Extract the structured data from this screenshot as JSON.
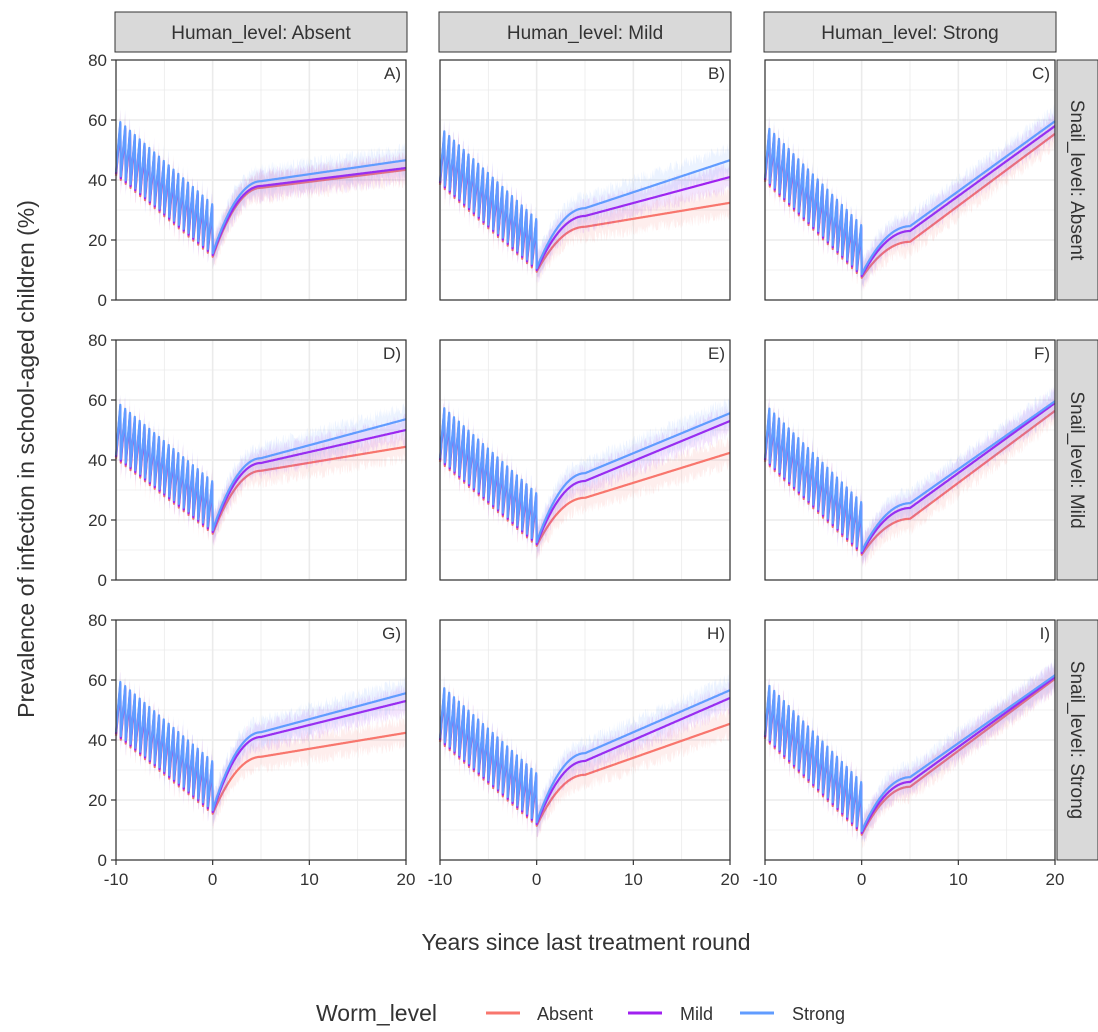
{
  "figure": {
    "ylabel": "Prevalence of infection in school-aged children (%)",
    "xlabel": "Years since last treatment round",
    "legend_title": "Worm_level",
    "legend_position": "bottom",
    "colors": {
      "Absent": "#F8766D",
      "Mild": "#A020F0",
      "Strong": "#619CFF",
      "strip_bg": "#D9D9D9",
      "grid": "#EBEBEB",
      "panel_border": "#333333"
    },
    "col_strips": [
      "Human_level: Absent",
      "Human_level: Mild",
      "Human_level: Strong"
    ],
    "row_strips": [
      "Snail_level: Absent",
      "Snail_level: Mild",
      "Snail_level: Strong"
    ],
    "legend_items": [
      "Absent",
      "Mild",
      "Strong"
    ]
  },
  "chart_data": {
    "type": "line",
    "facet": "grid",
    "x_axis": {
      "range": [
        -10,
        20
      ],
      "ticks": [
        -10,
        0,
        10,
        20
      ],
      "tick_labels": [
        "-10",
        "0",
        "10",
        "20"
      ]
    },
    "y_axis": {
      "range": [
        0,
        80
      ],
      "ticks": [
        0,
        20,
        40,
        60,
        80
      ],
      "tick_labels": [
        "0",
        "20",
        "40",
        "60",
        "80"
      ]
    },
    "grid": true,
    "treatment_rounds_per_year": 2,
    "series_names": [
      "Absent",
      "Mild",
      "Strong"
    ],
    "panels": [
      {
        "tag": "A)",
        "human": "Absent",
        "snail": "Absent",
        "start": 62,
        "trough": 15,
        "series": [
          {
            "name": "Absent",
            "y5": 38,
            "y20": 44
          },
          {
            "name": "Mild",
            "y5": 38,
            "y20": 44
          },
          {
            "name": "Strong",
            "y5": 39,
            "y20": 46
          }
        ]
      },
      {
        "tag": "B)",
        "human": "Mild",
        "snail": "Absent",
        "start": 59,
        "trough": 10,
        "series": [
          {
            "name": "Absent",
            "y5": 25,
            "y20": 33
          },
          {
            "name": "Mild",
            "y5": 28,
            "y20": 41
          },
          {
            "name": "Strong",
            "y5": 30,
            "y20": 46
          }
        ]
      },
      {
        "tag": "C)",
        "human": "Strong",
        "snail": "Absent",
        "start": 60,
        "trough": 8,
        "series": [
          {
            "name": "Absent",
            "y5": 20,
            "y20": 56
          },
          {
            "name": "Mild",
            "y5": 23,
            "y20": 58
          },
          {
            "name": "Strong",
            "y5": 24,
            "y20": 59
          }
        ]
      },
      {
        "tag": "D)",
        "human": "Absent",
        "snail": "Mild",
        "start": 61,
        "trough": 16,
        "series": [
          {
            "name": "Absent",
            "y5": 37,
            "y20": 45
          },
          {
            "name": "Mild",
            "y5": 39,
            "y20": 50
          },
          {
            "name": "Strong",
            "y5": 40,
            "y20": 53
          }
        ]
      },
      {
        "tag": "E)",
        "human": "Mild",
        "snail": "Mild",
        "start": 60,
        "trough": 12,
        "series": [
          {
            "name": "Absent",
            "y5": 28,
            "y20": 43
          },
          {
            "name": "Mild",
            "y5": 33,
            "y20": 53
          },
          {
            "name": "Strong",
            "y5": 35,
            "y20": 55
          }
        ]
      },
      {
        "tag": "F)",
        "human": "Strong",
        "snail": "Mild",
        "start": 60,
        "trough": 9,
        "series": [
          {
            "name": "Absent",
            "y5": 21,
            "y20": 57
          },
          {
            "name": "Mild",
            "y5": 24,
            "y20": 59
          },
          {
            "name": "Strong",
            "y5": 25,
            "y20": 59
          }
        ]
      },
      {
        "tag": "G)",
        "human": "Absent",
        "snail": "Strong",
        "start": 62,
        "trough": 16,
        "series": [
          {
            "name": "Absent",
            "y5": 35,
            "y20": 43
          },
          {
            "name": "Mild",
            "y5": 41,
            "y20": 53
          },
          {
            "name": "Strong",
            "y5": 42,
            "y20": 55
          }
        ]
      },
      {
        "tag": "H)",
        "human": "Mild",
        "snail": "Strong",
        "start": 60,
        "trough": 12,
        "series": [
          {
            "name": "Absent",
            "y5": 29,
            "y20": 46
          },
          {
            "name": "Mild",
            "y5": 33,
            "y20": 54
          },
          {
            "name": "Strong",
            "y5": 35,
            "y20": 56
          }
        ]
      },
      {
        "tag": "I)",
        "human": "Strong",
        "snail": "Strong",
        "start": 61,
        "trough": 9,
        "series": [
          {
            "name": "Absent",
            "y5": 25,
            "y20": 61
          },
          {
            "name": "Mild",
            "y5": 26,
            "y20": 61
          },
          {
            "name": "Strong",
            "y5": 27,
            "y20": 61
          }
        ]
      }
    ]
  }
}
